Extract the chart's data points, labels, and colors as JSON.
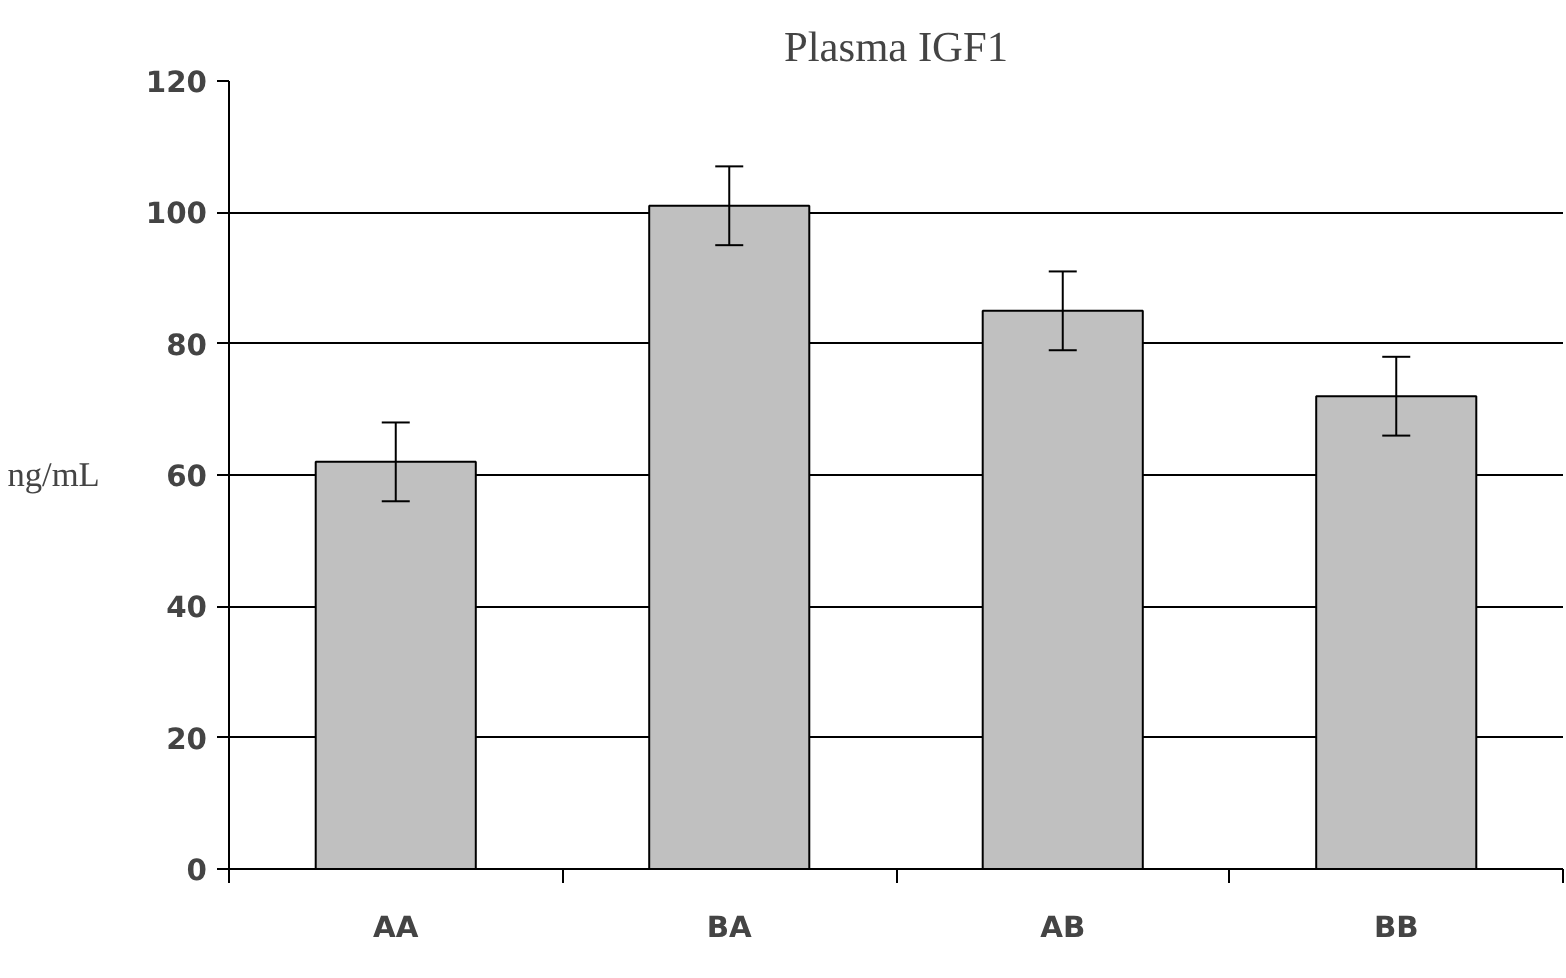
{
  "chart_data": {
    "type": "bar",
    "title": "Plasma IGF1",
    "ylabel": "ng/mL",
    "categories": [
      "AA",
      "BA",
      "AB",
      "BB"
    ],
    "values": [
      62,
      101,
      85,
      72
    ],
    "color": "#c0c0c0",
    "errors": [
      6,
      6,
      6,
      6
    ],
    "ylim": [
      0,
      120
    ],
    "yticks": [
      0,
      20,
      40,
      60,
      80,
      100,
      120
    ],
    "grid": "y"
  }
}
